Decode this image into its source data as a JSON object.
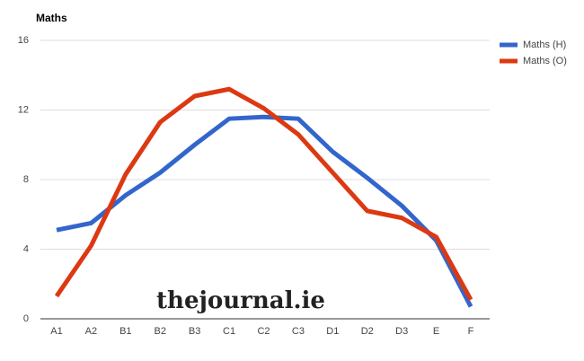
{
  "chart_data": {
    "type": "line",
    "title": "Maths",
    "watermark": "thejournal.ie",
    "categories": [
      "A1",
      "A2",
      "B1",
      "B2",
      "B3",
      "C1",
      "C2",
      "C3",
      "D1",
      "D2",
      "D3",
      "E",
      "F"
    ],
    "series": [
      {
        "name": "Maths (H)",
        "color": "#3366cc",
        "values": [
          5.1,
          5.5,
          7.1,
          8.4,
          10.0,
          11.5,
          11.6,
          11.5,
          9.6,
          8.1,
          6.5,
          4.5,
          0.7
        ]
      },
      {
        "name": "Maths (O)",
        "color": "#dc3912",
        "values": [
          1.3,
          4.2,
          8.3,
          11.3,
          12.8,
          13.2,
          12.1,
          10.6,
          8.4,
          6.2,
          5.8,
          4.7,
          1.1
        ]
      }
    ],
    "ylim": [
      0,
      16
    ],
    "yticks": [
      0,
      4,
      8,
      12,
      16
    ],
    "grid": true,
    "legend": "right"
  }
}
